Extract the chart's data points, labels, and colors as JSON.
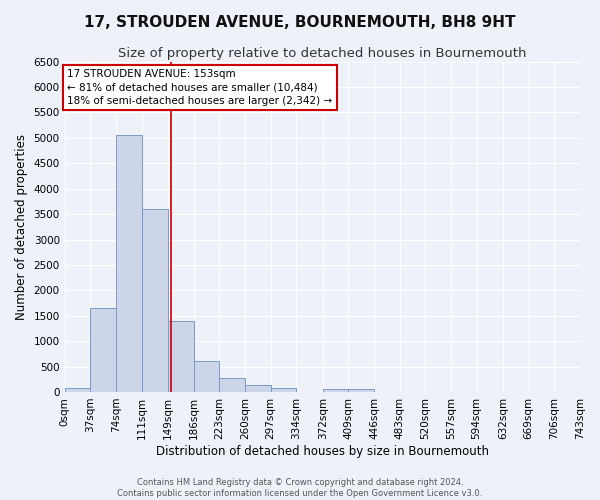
{
  "title": "17, STROUDEN AVENUE, BOURNEMOUTH, BH8 9HT",
  "subtitle": "Size of property relative to detached houses in Bournemouth",
  "xlabel": "Distribution of detached houses by size in Bournemouth",
  "ylabel": "Number of detached properties",
  "bin_edges": [
    0,
    37,
    74,
    111,
    149,
    186,
    223,
    260,
    297,
    334,
    372,
    409,
    446,
    483,
    520,
    557,
    594,
    632,
    669,
    706,
    743
  ],
  "bin_labels": [
    "0sqm",
    "37sqm",
    "74sqm",
    "111sqm",
    "149sqm",
    "186sqm",
    "223sqm",
    "260sqm",
    "297sqm",
    "334sqm",
    "372sqm",
    "409sqm",
    "446sqm",
    "483sqm",
    "520sqm",
    "557sqm",
    "594sqm",
    "632sqm",
    "669sqm",
    "706sqm",
    "743sqm"
  ],
  "bar_heights": [
    75,
    1650,
    5060,
    3600,
    1390,
    600,
    280,
    130,
    80,
    0,
    60,
    60,
    0,
    0,
    0,
    0,
    0,
    0,
    0,
    0
  ],
  "bar_facecolor": "#ccd6e8",
  "bar_edgecolor": "#7a9cc8",
  "vline_x": 153,
  "vline_color": "#cc0000",
  "ylim": [
    0,
    6500
  ],
  "yticks": [
    0,
    500,
    1000,
    1500,
    2000,
    2500,
    3000,
    3500,
    4000,
    4500,
    5000,
    5500,
    6000,
    6500
  ],
  "annotation_text": "17 STROUDEN AVENUE: 153sqm\n← 81% of detached houses are smaller (10,484)\n18% of semi-detached houses are larger (2,342) →",
  "annotation_box_color": "#cc0000",
  "footer_line1": "Contains HM Land Registry data © Crown copyright and database right 2024.",
  "footer_line2": "Contains public sector information licensed under the Open Government Licence v3.0.",
  "bg_color": "#eef2f8",
  "grid_color": "#ffffff",
  "title_fontsize": 11,
  "subtitle_fontsize": 9.5,
  "axis_fontsize": 8.5,
  "tick_fontsize": 7.5,
  "footer_fontsize": 6,
  "annot_fontsize": 7.5
}
